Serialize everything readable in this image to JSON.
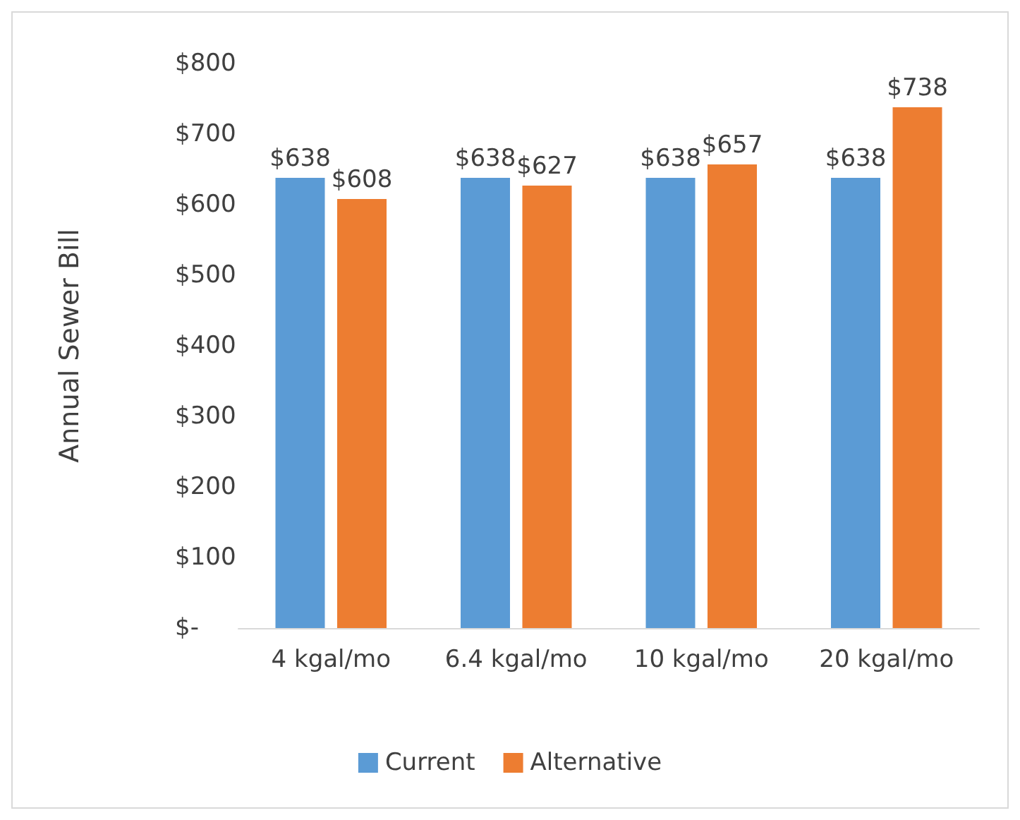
{
  "chart_data": {
    "type": "bar",
    "ylabel": "Annual Sewer Bill",
    "categories": [
      "4 kgal/mo",
      "6.4 kgal/mo",
      "10 kgal/mo",
      "20 kgal/mo"
    ],
    "series": [
      {
        "name": "Current",
        "color": "#5b9bd5",
        "values": [
          638,
          638,
          638,
          638
        ],
        "value_labels": [
          "$638",
          "$638",
          "$638",
          "$638"
        ]
      },
      {
        "name": "Alternative",
        "color": "#ed7d31",
        "values": [
          608,
          627,
          657,
          738
        ],
        "value_labels": [
          "$608",
          "$627",
          "$657",
          "$738"
        ]
      }
    ],
    "ylim": [
      0,
      800
    ],
    "yticks": [
      {
        "value": 0,
        "label": "$-"
      },
      {
        "value": 100,
        "label": "$100"
      },
      {
        "value": 200,
        "label": "$200"
      },
      {
        "value": 300,
        "label": "$300"
      },
      {
        "value": 400,
        "label": "$400"
      },
      {
        "value": 500,
        "label": "$500"
      },
      {
        "value": 600,
        "label": "$600"
      },
      {
        "value": 700,
        "label": "$700"
      },
      {
        "value": 800,
        "label": "$800"
      }
    ],
    "grid": false,
    "legend": "bottom"
  }
}
